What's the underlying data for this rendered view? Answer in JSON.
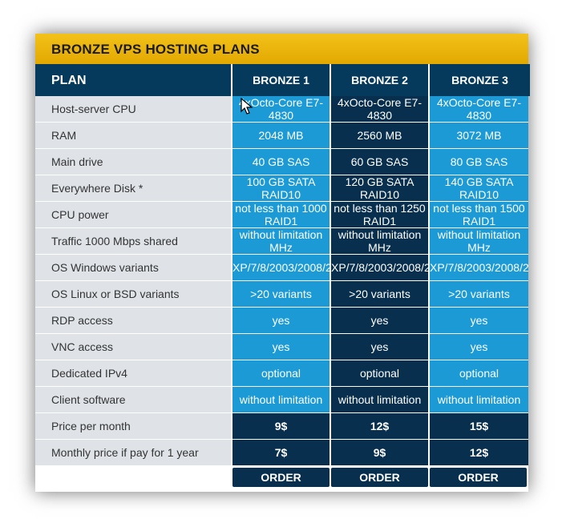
{
  "title": "BRONZE VPS HOSTING PLANS",
  "columns": {
    "plan": "PLAN",
    "plans": [
      "BRONZE 1",
      "BRONZE 2",
      "BRONZE 3"
    ]
  },
  "rows": [
    {
      "label": "Host-server CPU",
      "values": [
        "4xOcto-Core E7-",
        "4xOcto-Core E7-",
        "4xOcto-Core E7-"
      ],
      "values2": [
        "4830",
        "4830",
        "4830"
      ]
    },
    {
      "label": "RAM",
      "values": [
        "2048 MB",
        "2560 MB",
        "3072 MB"
      ],
      "values2": [
        "",
        "",
        ""
      ]
    },
    {
      "label": "Main drive",
      "values": [
        "40 GB SAS",
        "60 GB SAS",
        "80 GB SAS"
      ],
      "values2": [
        "",
        "",
        ""
      ]
    },
    {
      "label": "Everywhere Disk *",
      "values": [
        "100 GB SATA",
        "120 GB SATA",
        "140 GB SATA"
      ],
      "values2": [
        "RAID10",
        "RAID10",
        "RAID10"
      ]
    },
    {
      "label": "CPU power",
      "values": [
        "not less than 1000",
        "not less than 1250",
        "not less than 1500"
      ],
      "values2": [
        "RAID1",
        "RAID1",
        "RAID1"
      ]
    },
    {
      "label": "Traffic 1000 Mbps shared",
      "values": [
        "without limitation",
        "without limitation",
        "without limitation"
      ],
      "values2": [
        "MHz",
        "MHz",
        "MHz"
      ]
    },
    {
      "label": "OS Windows variants",
      "values": [
        "XP/7/8/2003/2008/2",
        "XP/7/8/2003/2008/2",
        "XP/7/8/2003/2008/2"
      ],
      "values2": [
        "",
        "",
        ""
      ]
    },
    {
      "label": "OS Linux or BSD variants",
      "values": [
        ">20 variants",
        ">20 variants",
        ">20 variants"
      ],
      "values2": [
        "",
        "",
        ""
      ]
    },
    {
      "label": "RDP access",
      "values": [
        "yes",
        "yes",
        "yes"
      ],
      "values2": [
        "",
        "",
        ""
      ]
    },
    {
      "label": "VNC access",
      "values": [
        "yes",
        "yes",
        "yes"
      ],
      "values2": [
        "",
        "",
        ""
      ]
    },
    {
      "label": "Dedicated IPv4",
      "values": [
        "optional",
        "optional",
        "optional"
      ],
      "values2": [
        "",
        "",
        ""
      ]
    },
    {
      "label": "Client software",
      "values": [
        "without limitation",
        "without limitation",
        "without limitation"
      ],
      "values2": [
        "",
        "",
        ""
      ]
    },
    {
      "label": "Price per month",
      "values": [
        "9$",
        "12$",
        "15$"
      ],
      "values2": [
        "",
        "",
        ""
      ]
    },
    {
      "label": "Monthly price if pay for 1 year",
      "values": [
        "7$",
        "9$",
        "12$"
      ],
      "values2": [
        "",
        "",
        ""
      ]
    }
  ],
  "order_label": "ORDER",
  "colors": {
    "banner": "#f3c21a",
    "header": "#063a5c",
    "cell_light": "#1b9ad6",
    "cell_dark": "#082f4d",
    "label_bg": "#dfe3e8"
  }
}
